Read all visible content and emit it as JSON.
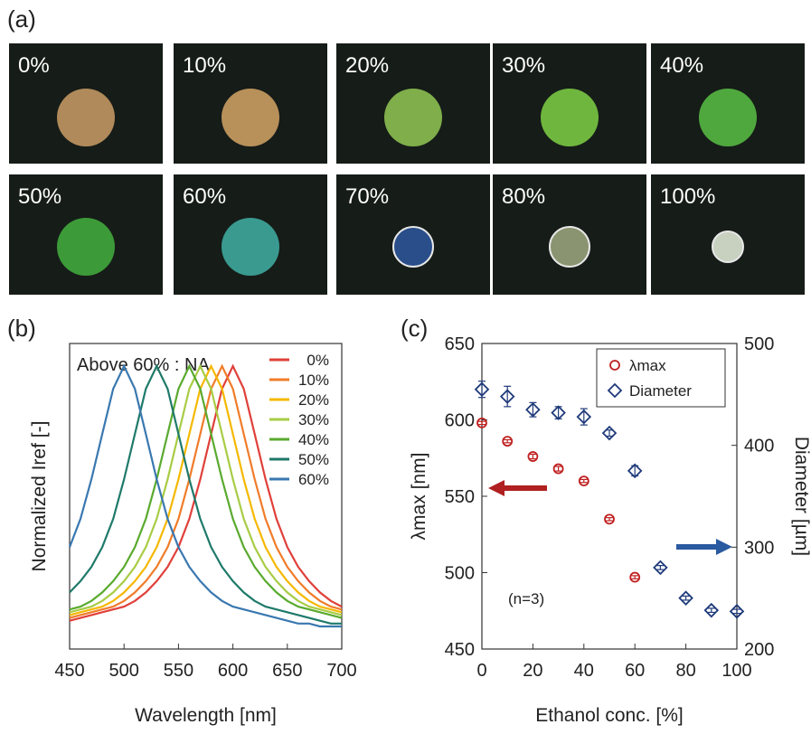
{
  "panel_labels": [
    "(a)",
    "(b)",
    "(c)"
  ],
  "photos": [
    {
      "label": "0%",
      "color": "#b08a5a"
    },
    {
      "label": "10%",
      "color": "#b8905a"
    },
    {
      "label": "20%",
      "color": "#7fae4a"
    },
    {
      "label": "30%",
      "color": "#6fb63e"
    },
    {
      "label": "40%",
      "color": "#4fa83e"
    },
    {
      "label": "50%",
      "color": "#3c9a38"
    },
    {
      "label": "60%",
      "color": "#3a9a90"
    },
    {
      "label": "70%",
      "color": "#2a4e8a"
    },
    {
      "label": "80%",
      "color": "#8a9470"
    },
    {
      "label": "100%",
      "color": "#c8d0c0"
    }
  ],
  "chart_data": [
    {
      "type": "line",
      "x_label": "Wavelength [nm]",
      "y_label": "Normalized Iref [-]",
      "annotation": "Above 60% : NA",
      "x": [
        450,
        460,
        470,
        480,
        490,
        500,
        510,
        520,
        530,
        540,
        550,
        560,
        570,
        580,
        590,
        600,
        610,
        620,
        630,
        640,
        650,
        660,
        670,
        680,
        690,
        700
      ],
      "xlim": [
        450,
        700
      ],
      "xticks": [
        450,
        500,
        550,
        600,
        650,
        700
      ],
      "ylim": [
        0,
        1.08
      ],
      "legend": "upper right",
      "series": [
        {
          "name": "0%",
          "color": "#e0403a",
          "values": [
            0.1,
            0.11,
            0.12,
            0.13,
            0.14,
            0.15,
            0.17,
            0.2,
            0.24,
            0.29,
            0.36,
            0.46,
            0.6,
            0.76,
            0.92,
            1.0,
            0.92,
            0.76,
            0.6,
            0.46,
            0.36,
            0.29,
            0.24,
            0.2,
            0.17,
            0.15
          ]
        },
        {
          "name": "10%",
          "color": "#f07c2a",
          "values": [
            0.11,
            0.12,
            0.13,
            0.14,
            0.15,
            0.17,
            0.2,
            0.24,
            0.29,
            0.36,
            0.46,
            0.6,
            0.76,
            0.92,
            1.0,
            0.92,
            0.76,
            0.6,
            0.46,
            0.36,
            0.29,
            0.24,
            0.2,
            0.17,
            0.15,
            0.14
          ]
        },
        {
          "name": "20%",
          "color": "#f5b800",
          "values": [
            0.12,
            0.13,
            0.14,
            0.15,
            0.17,
            0.2,
            0.24,
            0.29,
            0.36,
            0.46,
            0.6,
            0.76,
            0.92,
            1.0,
            0.92,
            0.76,
            0.6,
            0.46,
            0.36,
            0.29,
            0.24,
            0.2,
            0.17,
            0.15,
            0.14,
            0.13
          ]
        },
        {
          "name": "30%",
          "color": "#a8cc45",
          "values": [
            0.13,
            0.14,
            0.15,
            0.17,
            0.2,
            0.24,
            0.29,
            0.36,
            0.46,
            0.6,
            0.76,
            0.92,
            1.0,
            0.92,
            0.76,
            0.6,
            0.46,
            0.36,
            0.29,
            0.24,
            0.2,
            0.17,
            0.15,
            0.14,
            0.13,
            0.12
          ]
        },
        {
          "name": "40%",
          "color": "#5aaa2e",
          "values": [
            0.14,
            0.15,
            0.17,
            0.2,
            0.24,
            0.29,
            0.36,
            0.46,
            0.6,
            0.76,
            0.92,
            1.0,
            0.92,
            0.76,
            0.6,
            0.46,
            0.36,
            0.29,
            0.24,
            0.2,
            0.17,
            0.15,
            0.14,
            0.13,
            0.12,
            0.11
          ]
        },
        {
          "name": "50%",
          "color": "#1f7a6a",
          "values": [
            0.2,
            0.24,
            0.29,
            0.36,
            0.46,
            0.6,
            0.76,
            0.92,
            1.0,
            0.92,
            0.76,
            0.6,
            0.46,
            0.36,
            0.29,
            0.24,
            0.2,
            0.17,
            0.15,
            0.14,
            0.13,
            0.12,
            0.11,
            0.1,
            0.09,
            0.09
          ]
        },
        {
          "name": "60%",
          "color": "#3a78b0",
          "values": [
            0.36,
            0.46,
            0.6,
            0.76,
            0.92,
            1.0,
            0.92,
            0.76,
            0.6,
            0.46,
            0.36,
            0.29,
            0.24,
            0.2,
            0.17,
            0.15,
            0.14,
            0.13,
            0.12,
            0.11,
            0.1,
            0.09,
            0.09,
            0.08,
            0.08,
            0.08
          ]
        }
      ]
    },
    {
      "type": "scatter",
      "x_label": "Ethanol conc. [%]",
      "y_label": "λmax [nm]",
      "y2_label": "Diameter [µm]",
      "annotation": "(n=3)",
      "xlim": [
        0,
        100
      ],
      "xticks": [
        0,
        20,
        40,
        60,
        80,
        100
      ],
      "ylim": [
        450,
        650
      ],
      "yticks": [
        450,
        500,
        550,
        600,
        650
      ],
      "y2lim": [
        200,
        500
      ],
      "y2ticks": [
        200,
        300,
        400,
        500
      ],
      "legend": "upper right",
      "series": [
        {
          "name": "λmax",
          "color": "#c02020",
          "marker": "circle",
          "x": [
            0,
            10,
            20,
            30,
            40,
            50,
            60
          ],
          "values": [
            598,
            586,
            576,
            568,
            560,
            535,
            497
          ],
          "errors": [
            1,
            1,
            1.5,
            1.5,
            1,
            1,
            1
          ]
        },
        {
          "name": "Diameter",
          "color": "#1f3a7a",
          "marker": "diamond",
          "axis": "y2",
          "x": [
            0,
            10,
            20,
            30,
            40,
            50,
            60,
            70,
            80,
            90,
            100
          ],
          "values": [
            455,
            448,
            435,
            432,
            428,
            412,
            375,
            280,
            250,
            238,
            237
          ],
          "errors": [
            8,
            10,
            7,
            6,
            8,
            3,
            5,
            2,
            2,
            2,
            2
          ]
        }
      ]
    }
  ]
}
